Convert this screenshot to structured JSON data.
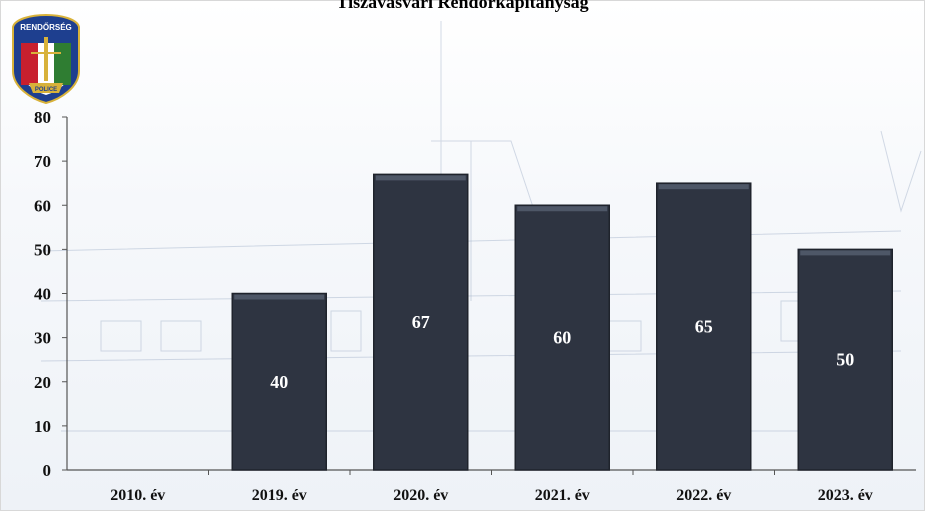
{
  "chart_data": {
    "type": "bar",
    "title": "Tiszavasvári Rendőrkapitányság",
    "categories": [
      "2010. év",
      "2019. év",
      "2020. év",
      "2021. év",
      "2022. év",
      "2023. év"
    ],
    "values": [
      0,
      40,
      67,
      60,
      65,
      50
    ],
    "data_labels": [
      "",
      "40",
      "67",
      "60",
      "65",
      "50"
    ],
    "ylim": [
      0,
      80
    ],
    "yticks": [
      "0",
      "10",
      "20",
      "30",
      "40",
      "50",
      "60",
      "70",
      "80"
    ],
    "grid": false,
    "legend": "none",
    "bar_color": "#2e3441"
  },
  "logo": {
    "top_text": "RENDŐRSÉG",
    "bottom_text": "POLICE",
    "colors": {
      "red": "#c8202e",
      "green": "#2f7d32",
      "gold": "#d8b23a",
      "blue": "#1e3f8f"
    }
  }
}
